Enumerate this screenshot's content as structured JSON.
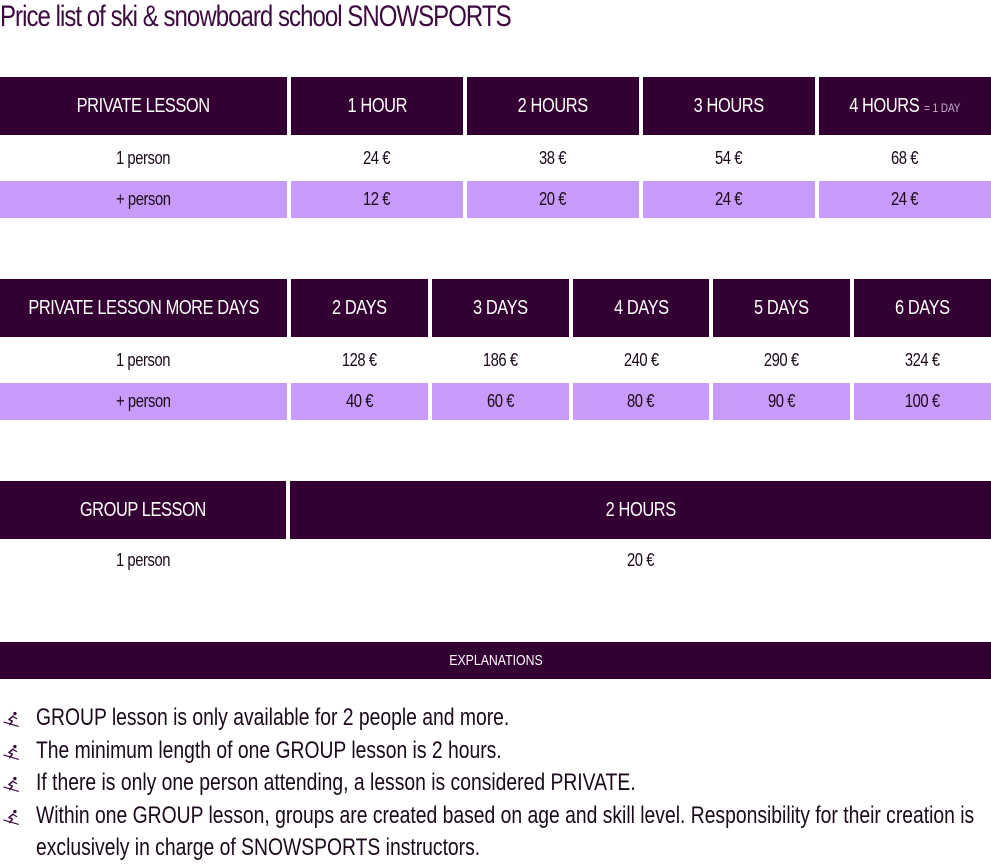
{
  "title": "Price list of ski & snowboard school SNOWSPORTS",
  "private_lesson": {
    "header": "PRIVATE LESSON",
    "columns": [
      "1 HOUR",
      "2 HOURS",
      "3 HOURS",
      "4 HOURS"
    ],
    "col4_note": "= 1 DAY",
    "rows": [
      {
        "label": "1 person",
        "values": [
          "24 €",
          "38 €",
          "54 €",
          "68 €"
        ]
      },
      {
        "label": "+ person",
        "values": [
          "12 €",
          "20 €",
          "24 €",
          "24 €"
        ]
      }
    ]
  },
  "more_days": {
    "header": "PRIVATE LESSON MORE DAYS",
    "columns": [
      "2 DAYS",
      "3 DAYS",
      "4 DAYS",
      "5 DAYS",
      "6 DAYS"
    ],
    "rows": [
      {
        "label": "1 person",
        "values": [
          "128 €",
          "186 €",
          "240 €",
          "290 €",
          "324 €"
        ]
      },
      {
        "label": "+ person",
        "values": [
          "40 €",
          "60 €",
          "80 €",
          "90 €",
          "100 €"
        ]
      }
    ]
  },
  "group_lesson": {
    "header": "GROUP LESSON",
    "column": "2 HOURS",
    "rows": [
      {
        "label": "1 person",
        "value": "20 €"
      }
    ]
  },
  "explanations": {
    "header": "EXPLANATIONS",
    "icon": "skier-icon",
    "items": [
      "GROUP lesson is only available for 2 people and more.",
      "The minimum length of one GROUP lesson is 2 hours.",
      "If there is only one person attending, a lesson is considered PRIVATE.",
      "Within one GROUP lesson, groups are created based on age and skill level. Responsibility for their creation is exclusively in charge of SNOWSPORTS instructors."
    ]
  },
  "colors": {
    "header_bg": "#340033",
    "highlight_row": "#c89bfa",
    "title": "#3d0a40"
  }
}
